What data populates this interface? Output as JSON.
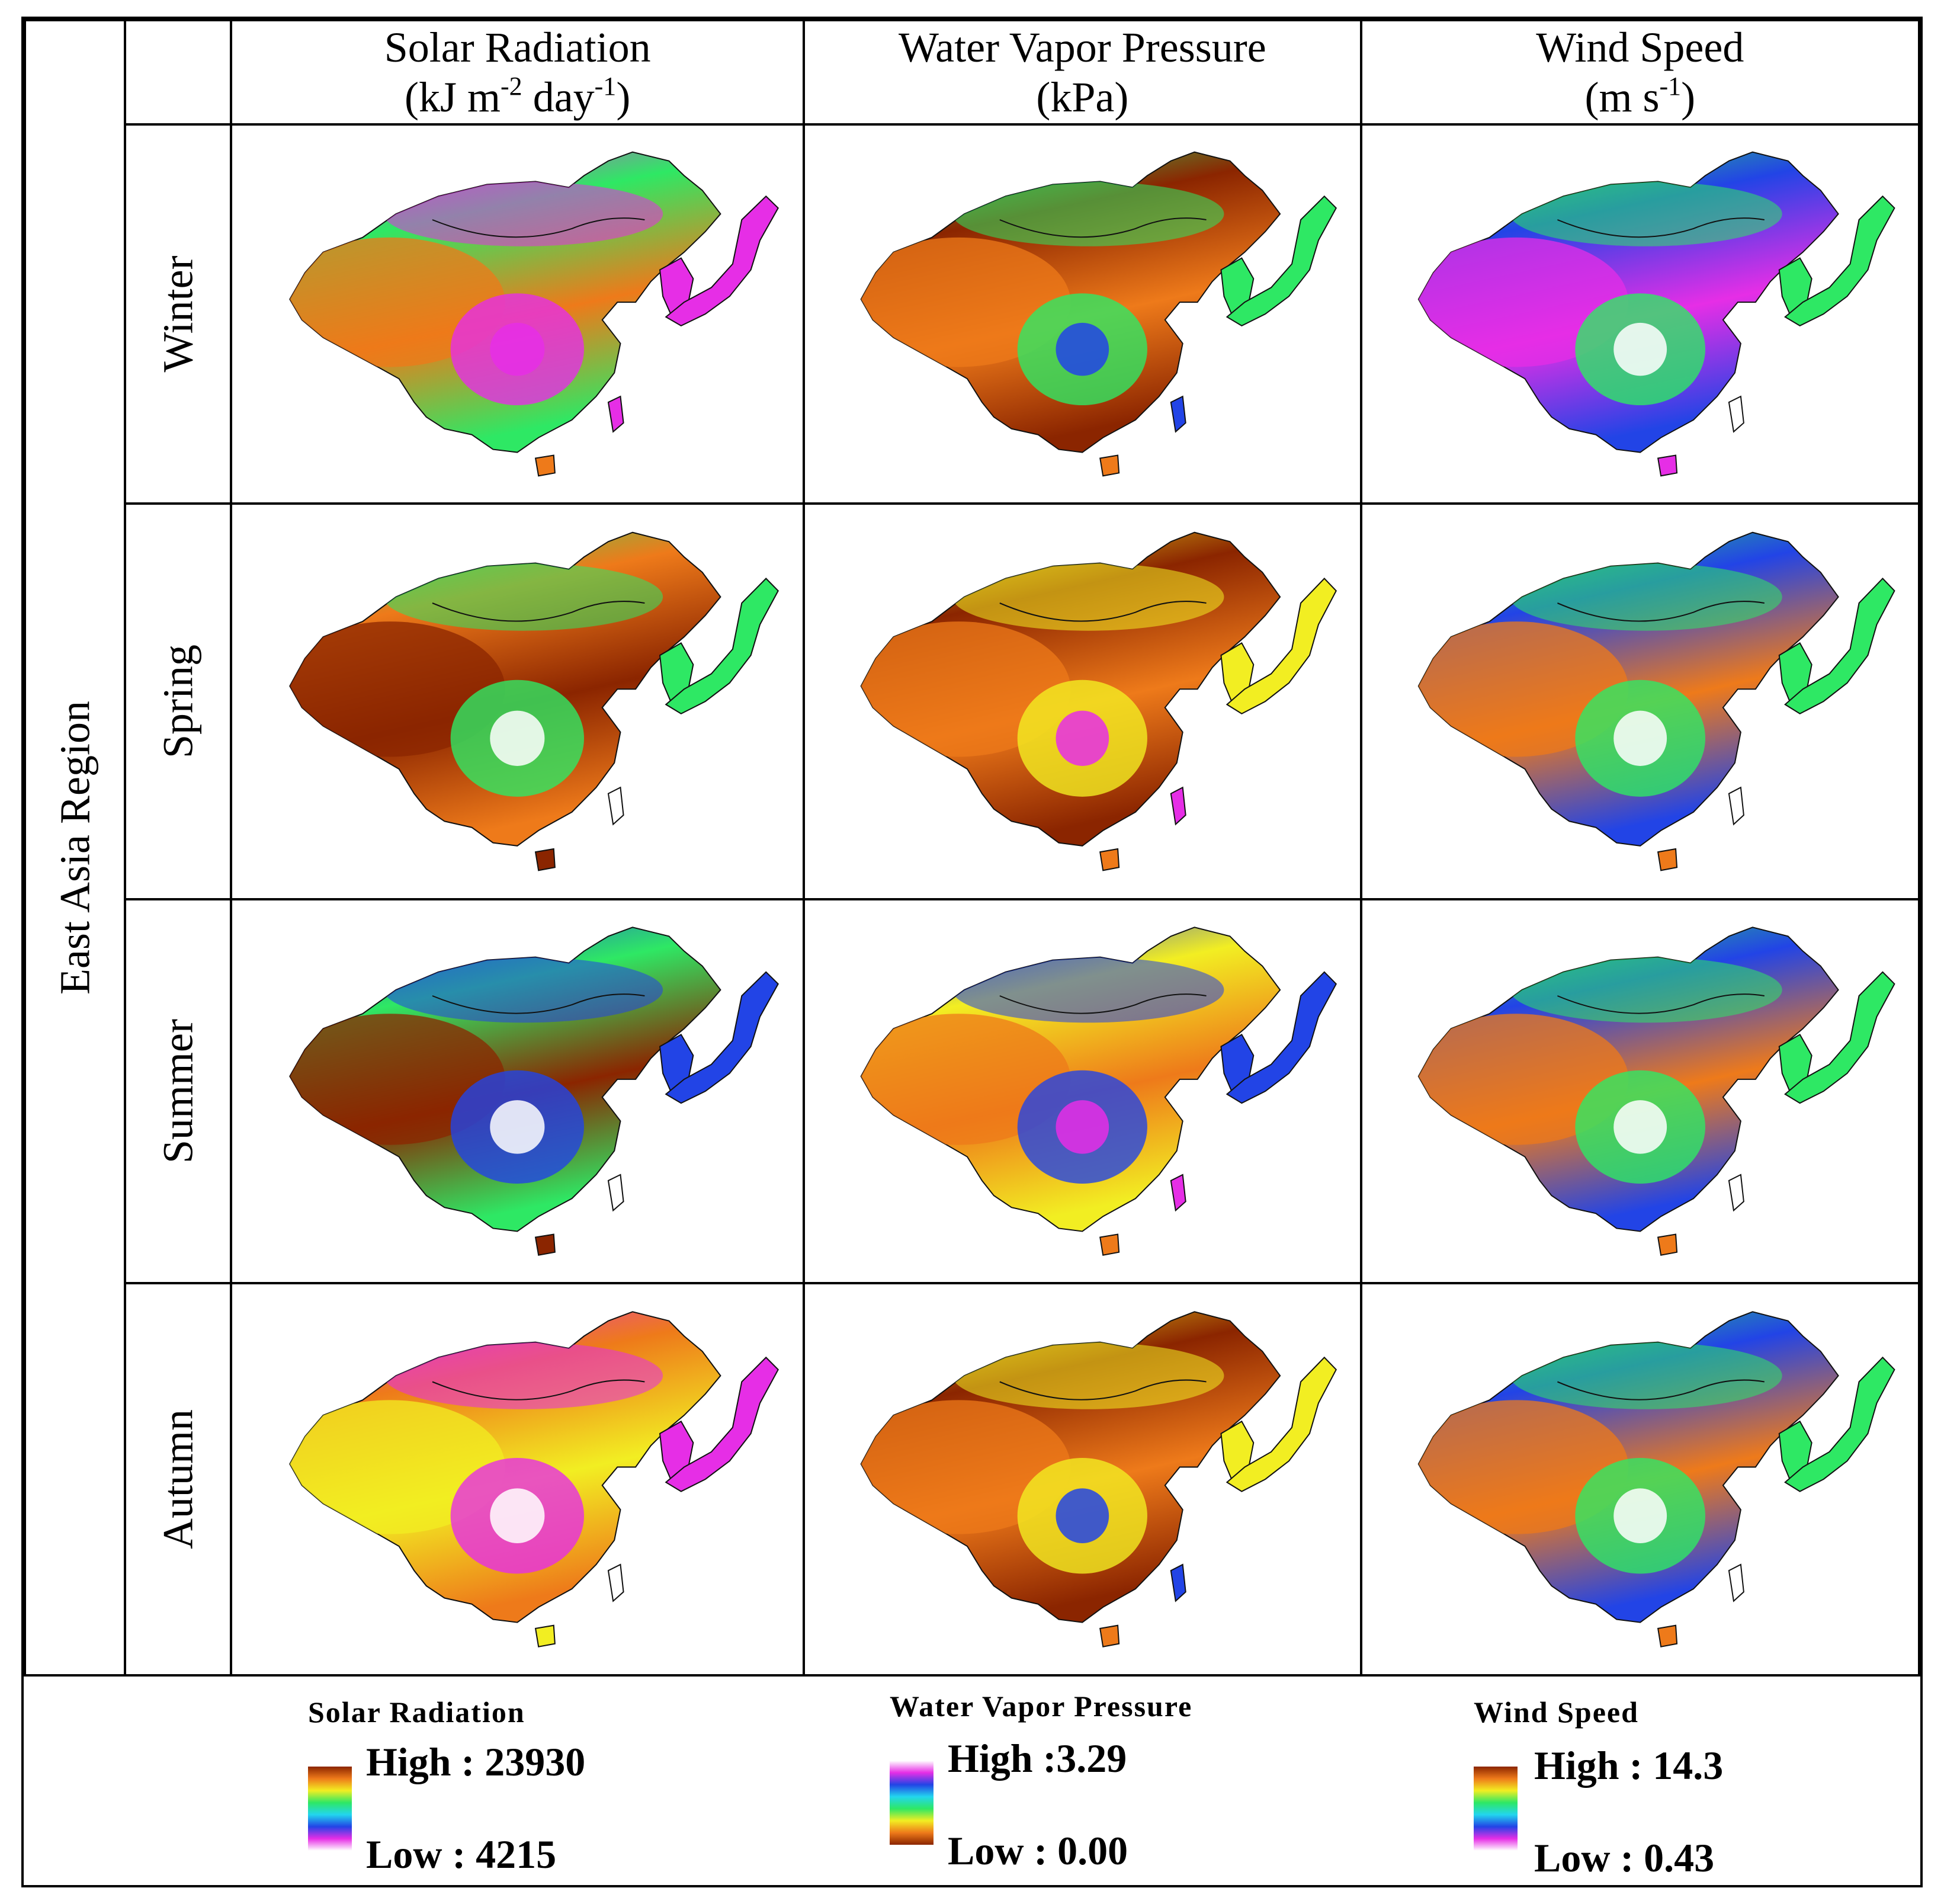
{
  "row_group_label": "East Asia Region",
  "columns": [
    {
      "title": "Solar Radiation",
      "unit_prefix": "(kJ m",
      "unit_exp1": "-2",
      "unit_mid": " day",
      "unit_exp2": "-1",
      "unit_suffix": ")"
    },
    {
      "title": "Water Vapor Pressure",
      "unit": "(kPa)"
    },
    {
      "title": "Wind Speed",
      "unit_prefix": "(m s",
      "unit_exp1": "-1",
      "unit_suffix": ")"
    }
  ],
  "seasons": [
    "Winter",
    "Spring",
    "Summer",
    "Autumn"
  ],
  "legends": [
    {
      "title": "Solar Radiation",
      "high_label": "High : 23930",
      "low_label": "Low : 4215",
      "high": 23930,
      "low": 4215
    },
    {
      "title": "Water Vapor Pressure",
      "high_label": "High :3.29",
      "low_label": "Low : 0.00",
      "high": 3.29,
      "low": 0.0
    },
    {
      "title": "Wind Speed",
      "high_label": "High : 14.3",
      "low_label": "Low : 0.43",
      "high": 14.3,
      "low": 0.43
    }
  ],
  "colors": {
    "dark_brown": "#8b2500",
    "orange": "#ee7a1a",
    "yellow": "#f2ee22",
    "green": "#2ee864",
    "cyan": "#22d6ee",
    "blue": "#2244e6",
    "magenta": "#e62ee6",
    "white": "#ffffff"
  }
}
